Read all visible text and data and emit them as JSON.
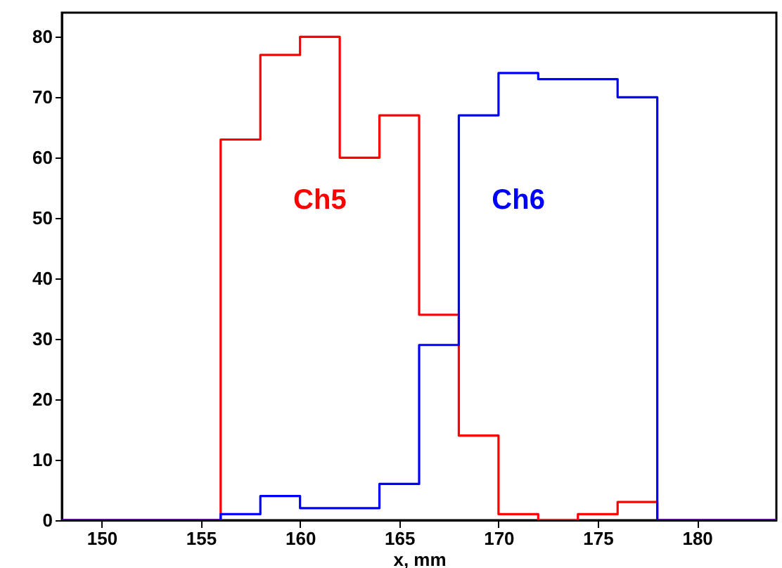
{
  "chart_data": {
    "type": "histogram",
    "xlabel": "x, mm",
    "bins": [
      148,
      150,
      152,
      154,
      156,
      158,
      160,
      162,
      164,
      166,
      168,
      170,
      172,
      174,
      176,
      178,
      180,
      182,
      184
    ],
    "series": [
      {
        "name": "Ch5",
        "color": "#ff0000",
        "values": [
          0,
          0,
          0,
          0,
          63,
          77,
          80,
          60,
          67,
          34,
          14,
          1,
          0,
          1,
          3,
          0,
          0,
          0
        ]
      },
      {
        "name": "Ch6",
        "color": "#0000ff",
        "values": [
          0,
          0,
          0,
          0,
          1,
          4,
          2,
          2,
          6,
          29,
          67,
          74,
          73,
          73,
          70,
          0,
          0,
          0
        ]
      }
    ],
    "xlim": [
      148,
      184
    ],
    "xticks": [
      150,
      155,
      160,
      165,
      170,
      175,
      180
    ],
    "ylim": [
      0,
      84
    ],
    "yticks": [
      0,
      10,
      20,
      30,
      40,
      50,
      60,
      70,
      80
    ],
    "grid": false
  }
}
